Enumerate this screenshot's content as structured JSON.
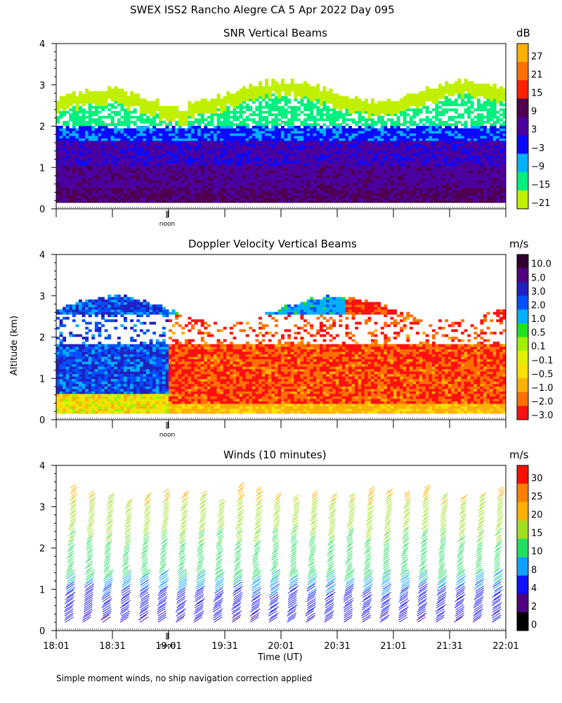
{
  "page": {
    "title": "SWEX ISS2 Rancho Alegre CA    5 Apr 2022 Day 095",
    "ylabel": "Altitude (km)",
    "xlabel": "Time (UT)",
    "footnote": "Simple moment winds, no ship navigation correction applied",
    "noon_label": "noon"
  },
  "chart_data": [
    {
      "type": "heatmap",
      "title": "SNR Vertical Beams",
      "colorbar_title": "dB",
      "colorbar_labels": [
        "27",
        "21",
        "15",
        "9",
        "3",
        "−3",
        "−9",
        "−15",
        "−21"
      ],
      "colorbar_colors": [
        "#ffb000",
        "#ff7000",
        "#ff2000",
        "#500050",
        "#4b00a0",
        "#0a0aff",
        "#00b0ff",
        "#00f080",
        "#c0f000"
      ],
      "ylim": [
        0,
        4
      ],
      "yticks": [
        "0",
        "1",
        "2",
        "3",
        "4"
      ],
      "x_range": [
        "18:01",
        "22:01"
      ],
      "bands": [
        {
          "alt": [
            0.15,
            0.5
          ],
          "value_db": 6
        },
        {
          "alt": [
            0.5,
            1.0
          ],
          "value_db": 4
        },
        {
          "alt": [
            1.0,
            1.6
          ],
          "value_db": 0
        },
        {
          "alt": [
            1.6,
            2.0
          ],
          "value_db": -6
        },
        {
          "alt": [
            2.0,
            2.6
          ],
          "value_db": -15
        },
        {
          "alt": [
            2.6,
            2.9
          ],
          "value_db": -21
        }
      ]
    },
    {
      "type": "heatmap",
      "title": "Doppler Velocity Vertical Beams",
      "colorbar_title": "m/s",
      "colorbar_labels": [
        "10.0",
        "5.0",
        "3.0",
        "2.0",
        "1.0",
        "0.5",
        "0.1",
        "−0.1",
        "−0.5",
        "−1.0",
        "−2.0",
        "−3.0"
      ],
      "colorbar_colors": [
        "#300030",
        "#500080",
        "#2020c0",
        "#0050ff",
        "#00b0ff",
        "#20e020",
        "#a0f000",
        "#e0f000",
        "#ffe000",
        "#ffb000",
        "#ff7000",
        "#ff1010"
      ],
      "ylim": [
        0,
        4
      ],
      "yticks": [
        "0",
        "1",
        "2",
        "3",
        "4"
      ],
      "x_range": [
        "18:01",
        "22:01"
      ],
      "early_period": {
        "time": [
          "18:01",
          "18:55"
        ],
        "value_ms": 2.5
      },
      "late_period": {
        "time": [
          "18:55",
          "22:01"
        ],
        "value_ms": -1.5
      },
      "cloud_gap_km": [
        1.8,
        2.6
      ]
    },
    {
      "type": "barbs",
      "title": "Winds (10 minutes)",
      "colorbar_title": "m/s",
      "colorbar_labels": [
        "30",
        "25",
        "20",
        "15",
        "10",
        "8",
        "4",
        "2",
        "0"
      ],
      "colorbar_colors": [
        "#ff1000",
        "#ff8000",
        "#ffb000",
        "#a0e020",
        "#20e060",
        "#10a0ff",
        "#1010ff",
        "#500080",
        "#000000"
      ],
      "ylim": [
        0,
        4
      ],
      "yticks": [
        "0",
        "1",
        "2",
        "3",
        "4"
      ],
      "xticks": [
        "18:01",
        "18:31",
        "19:01",
        "19:31",
        "20:01",
        "20:31",
        "21:01",
        "21:31",
        "22:01"
      ],
      "profile_count": 24,
      "speed_profile": [
        {
          "alt_km": 0.2,
          "speed_ms": 4
        },
        {
          "alt_km": 1.0,
          "speed_ms": 8
        },
        {
          "alt_km": 1.5,
          "speed_ms": 12
        },
        {
          "alt_km": 2.5,
          "speed_ms": 16
        },
        {
          "alt_km": 3.5,
          "speed_ms": 22
        }
      ]
    }
  ]
}
